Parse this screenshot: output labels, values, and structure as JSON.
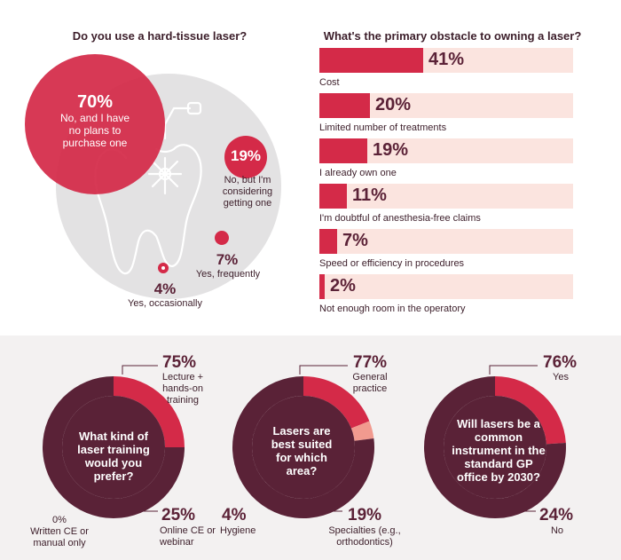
{
  "chart_data": [
    {
      "type": "bubble",
      "title": "Do you use a hard-tissue laser?",
      "slices": [
        {
          "pct": "70%",
          "label": "No, and I have no plans to purchase one",
          "value": 70
        },
        {
          "pct": "19%",
          "label": "No, but I'm considering getting one",
          "value": 19
        },
        {
          "pct": "7%",
          "label": "Yes, frequently",
          "value": 7
        },
        {
          "pct": "4%",
          "label": "Yes, occasionally",
          "value": 4
        }
      ]
    },
    {
      "type": "bar",
      "title": "What's the primary obstacle to owning a laser?",
      "categories": [
        "Cost",
        "Limited number of treatments",
        "I already own one",
        "I'm doubtful of anesthesia-free claims",
        "Speed or efficiency in procedures",
        "Not enough room in the operatory"
      ],
      "values": [
        41,
        20,
        19,
        11,
        7,
        2
      ],
      "labels": [
        "41%",
        "20%",
        "19%",
        "11%",
        "7%",
        "2%"
      ],
      "xlim": [
        0,
        100
      ]
    },
    {
      "type": "pie",
      "title": "What kind of laser training would you prefer?",
      "slices": [
        {
          "pct": "75%",
          "label": "Lecture + hands-on training",
          "value": 75,
          "color": "#5a2237"
        },
        {
          "pct": "25%",
          "label": "Online CE or webinar",
          "value": 25,
          "color": "#d42a48"
        },
        {
          "pct": "0%",
          "label": "Written CE or manual only",
          "value": 0,
          "color": "#f19a8f"
        }
      ]
    },
    {
      "type": "pie",
      "title": "Lasers are best suited for which area?",
      "slices": [
        {
          "pct": "77%",
          "label": "General practice",
          "value": 77,
          "color": "#5a2237"
        },
        {
          "pct": "19%",
          "label": "Specialties (e.g., orthodontics)",
          "value": 19,
          "color": "#d42a48"
        },
        {
          "pct": "4%",
          "label": "Hygiene",
          "value": 4,
          "color": "#f19a8f"
        }
      ]
    },
    {
      "type": "pie",
      "title": "Will lasers be a common instrument in the standard GP office by 2030?",
      "slices": [
        {
          "pct": "76%",
          "label": "Yes",
          "value": 76,
          "color": "#5a2237"
        },
        {
          "pct": "24%",
          "label": "No",
          "value": 24,
          "color": "#d42a48"
        }
      ]
    }
  ],
  "colors": {
    "crimson": "#d42a48",
    "maroon": "#5a2237",
    "light": "#fbe4df",
    "grey": "#e3e2e3"
  }
}
